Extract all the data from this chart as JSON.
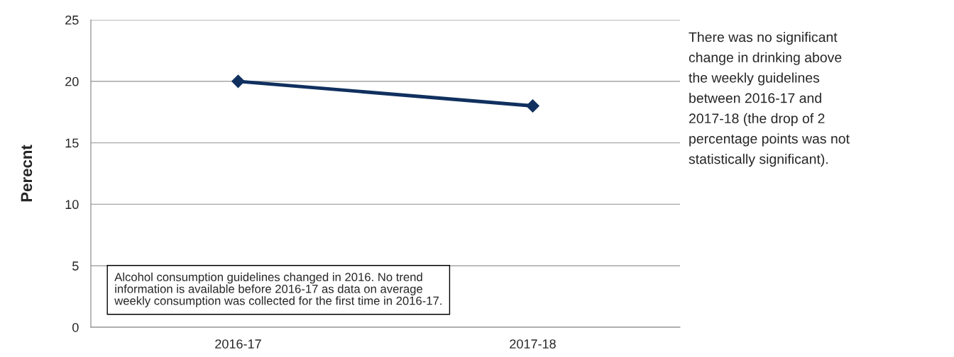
{
  "chart_data": {
    "type": "line",
    "categories": [
      "2016-17",
      "2017-18"
    ],
    "series": [
      {
        "color": "#10305f",
        "values": [
          20,
          18
        ]
      }
    ],
    "ylabel": "Perecnt",
    "ylim": [
      0,
      25
    ],
    "yticks": [
      0,
      5,
      10,
      15,
      20,
      25
    ],
    "grid": "y",
    "marker": "diamond",
    "line_style": "solid",
    "legend": false,
    "annotations": [
      "Alcohol consumption guidelines changed in 2016. No trend\ninformation is available before 2016-17 as data on average\nweekly consumption was collected for the first time in 2016-17.",
      "There was no significant\nchange in drinking above\nthe weekly guidelines\nbetween 2016-17 and\n2017-18 (the drop of 2\npercentage points was not\nstatistically significant)."
    ]
  }
}
